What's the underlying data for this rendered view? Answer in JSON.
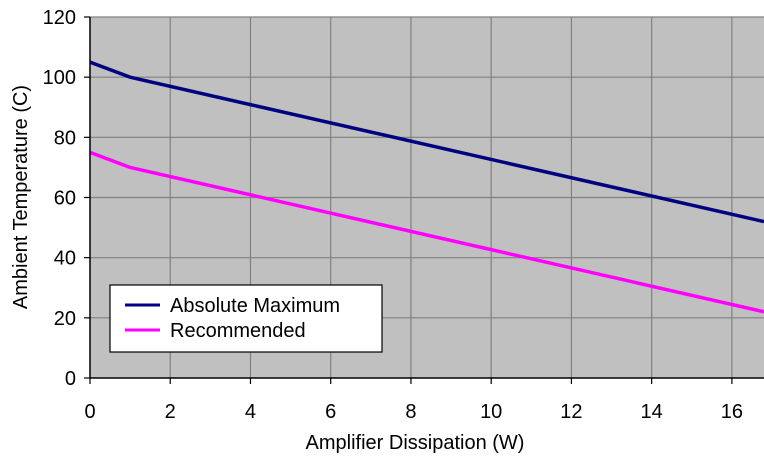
{
  "chart_data": {
    "type": "line",
    "xlabel": "Amplifier Dissipation (W)",
    "ylabel": "Ambient Temperature (C)",
    "xlim": [
      0,
      16.8
    ],
    "ylim": [
      0,
      120
    ],
    "xticks": [
      0,
      2,
      4,
      6,
      8,
      10,
      12,
      14,
      16
    ],
    "yticks": [
      0,
      20,
      40,
      60,
      80,
      100,
      120
    ],
    "grid": true,
    "plot_background": "#c0c0c0",
    "legend_position": "bottom-left",
    "series": [
      {
        "name": "Absolute Maximum",
        "color": "#000080",
        "x": [
          0,
          1,
          16.8
        ],
        "y": [
          105,
          100,
          52
        ]
      },
      {
        "name": "Recommended",
        "color": "#ff00ff",
        "x": [
          0,
          1,
          16.8
        ],
        "y": [
          75,
          70,
          22
        ]
      }
    ]
  }
}
